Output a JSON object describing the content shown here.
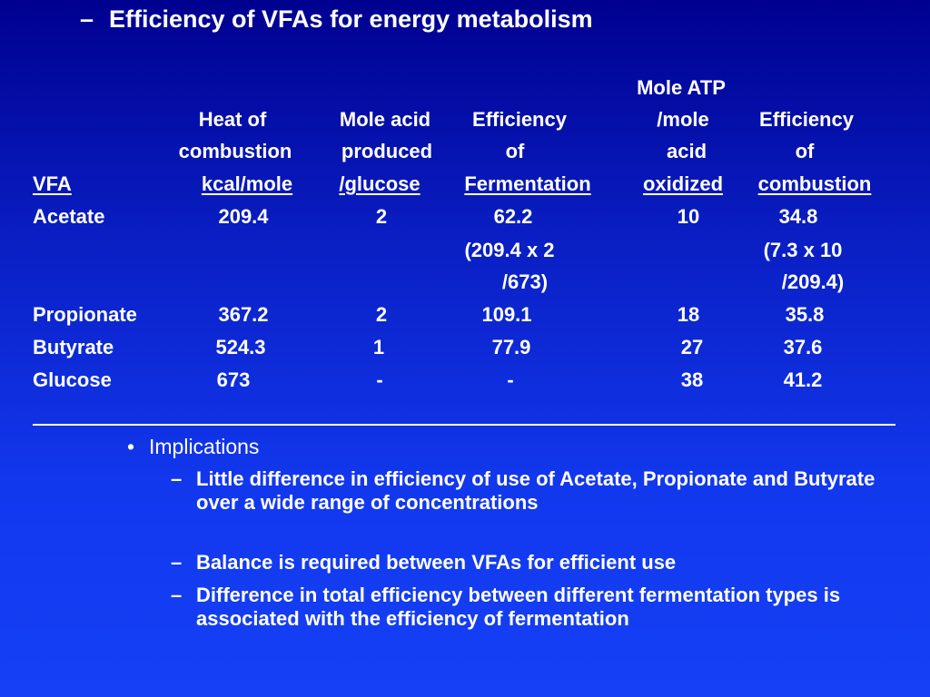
{
  "title": "Efficiency of VFAs for energy metabolism",
  "title_marker": "–",
  "table": {
    "headers": {
      "vfa": "VFA",
      "heat": [
        "Heat of",
        "combustion",
        "kcal/mole"
      ],
      "mole_acid": [
        "Mole acid",
        "produced",
        "/glucose"
      ],
      "eff_ferm": [
        "Efficiency",
        "of",
        "Fermentation"
      ],
      "atp": [
        "Mole ATP",
        "/mole",
        "acid",
        "oxidized"
      ],
      "eff_comb": [
        "Efficiency",
        "of",
        "combustion"
      ]
    },
    "rows": [
      {
        "vfa": "Acetate",
        "heat": "209.4",
        "mole_acid": "2",
        "eff_ferm": "62.2",
        "eff_ferm_calc": [
          "(209.4 x 2",
          "/673)"
        ],
        "atp": "10",
        "eff_comb": "34.8",
        "eff_comb_calc": [
          "(7.3 x 10",
          "/209.4)"
        ]
      },
      {
        "vfa": "Propionate",
        "heat": "367.2",
        "mole_acid": "2",
        "eff_ferm": "109.1",
        "atp": "18",
        "eff_comb": "35.8"
      },
      {
        "vfa": "Butyrate",
        "heat": "524.3",
        "mole_acid": "1",
        "eff_ferm": "77.9",
        "atp": "27",
        "eff_comb": "37.6"
      },
      {
        "vfa": "Glucose",
        "heat": "673",
        "mole_acid": "-",
        "eff_ferm": "-",
        "atp": "38",
        "eff_comb": "41.2"
      }
    ]
  },
  "implications": {
    "bullet_marker": "•",
    "label": "Implications",
    "sub_marker": "–",
    "items": [
      "Little difference in efficiency of use of Acetate, Propionate and Butyrate over a wide range of concentrations",
      "Balance is required between VFAs for efficient use",
      "Difference in total efficiency between different fermentation types is associated with the efficiency of fermentation"
    ]
  }
}
